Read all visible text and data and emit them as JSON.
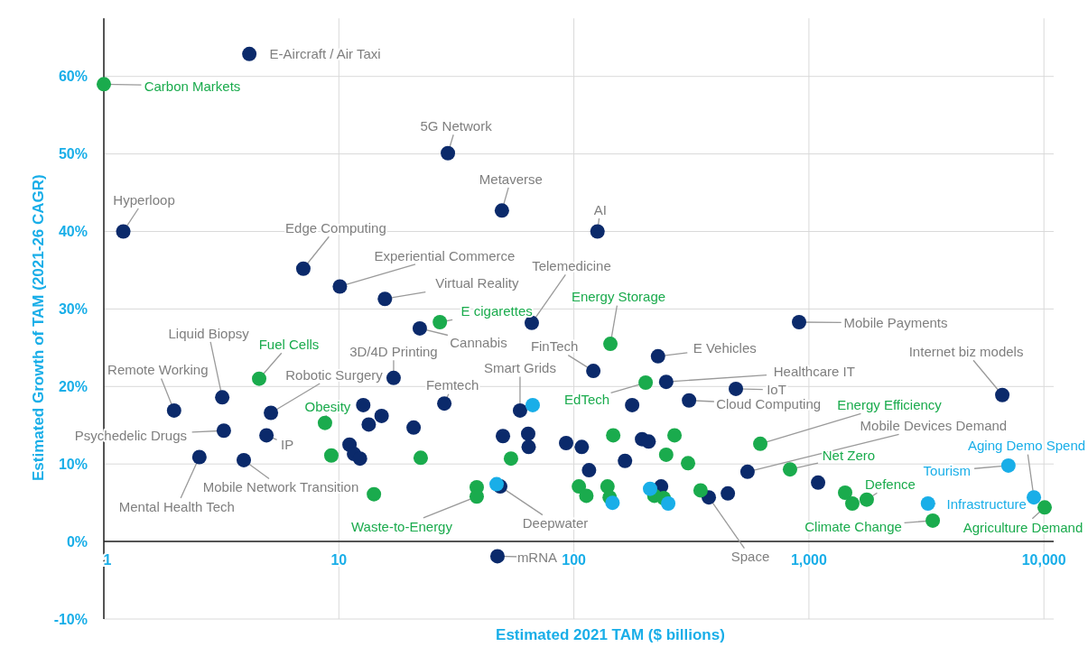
{
  "chart_data": {
    "type": "scatter",
    "xlabel": "Estimated 2021 TAM ($ billions)",
    "ylabel": "Estimated Growth of TAM (2021-26 CAGR)",
    "log": "x",
    "grid": true,
    "marker": "circle",
    "xlim": [
      1,
      11000
    ],
    "ylim": [
      -10,
      67.5
    ],
    "xticks": [
      1,
      10,
      100,
      {
        "value": 1000,
        "label": "1,000"
      },
      {
        "value": 10000,
        "label": "10,000"
      }
    ],
    "yticks": [
      {
        "value": -10,
        "label": "-10%"
      },
      {
        "value": 0,
        "label": "0%"
      },
      {
        "value": 10,
        "label": "10%"
      },
      {
        "value": 20,
        "label": "20%"
      },
      {
        "value": 30,
        "label": "30%"
      },
      {
        "value": 40,
        "label": "40%"
      },
      {
        "value": 50,
        "label": "50%"
      },
      {
        "value": 60,
        "label": "60%"
      }
    ],
    "series": [
      {
        "color": "#0b2a6b",
        "x": [
          4.16,
          29.1,
          49.4,
          126,
          1.21,
          7.06,
          10.1,
          15.7,
          66.2,
          22.1,
          908,
          121,
          228,
          247,
          17.1,
          6650,
          489,
          309,
          3.19,
          5.14,
          1.99,
          28.1,
          59.0,
          3.24,
          4.92,
          2.55,
          3.94,
          548,
          375,
          48.6,
          47.3,
          12.7,
          15.2,
          13.4,
          20.8,
          11.1,
          11.6,
          12.3,
          49.9,
          63.9,
          64.2,
          92.7,
          108,
          116,
          165,
          177,
          195,
          208,
          235,
          452,
          1094
        ],
        "values": [
          62.9,
          50.1,
          42.7,
          40.0,
          40.0,
          35.2,
          32.9,
          31.3,
          28.2,
          27.5,
          28.3,
          22.0,
          23.9,
          20.6,
          21.1,
          18.9,
          19.7,
          18.2,
          18.6,
          16.6,
          16.9,
          17.8,
          16.9,
          14.3,
          13.7,
          10.9,
          10.5,
          9.0,
          5.7,
          7.1,
          -1.9,
          17.6,
          16.2,
          15.1,
          14.7,
          12.5,
          11.3,
          10.7,
          13.6,
          13.9,
          12.2,
          12.7,
          12.2,
          9.2,
          10.4,
          17.6,
          13.2,
          12.9,
          7.1,
          6.2,
          7.6
        ]
      },
      {
        "color": "#1aab4d",
        "x": [
          1.0,
          26.9,
          143,
          4.58,
          202,
          8.73,
          621,
          831,
          38.6,
          38.6,
          1426,
          1530,
          1762,
          3365,
          10070,
          9.29,
          14.1,
          22.3,
          54.0,
          147,
          105,
          113,
          139,
          142,
          268,
          247,
          306,
          220,
          241,
          346
        ],
        "values": [
          59.0,
          28.3,
          25.5,
          21.0,
          20.5,
          15.3,
          12.6,
          9.3,
          7.0,
          5.8,
          6.3,
          4.9,
          5.4,
          2.7,
          4.4,
          11.1,
          6.1,
          10.8,
          10.7,
          13.7,
          7.1,
          5.9,
          7.1,
          5.7,
          13.7,
          11.2,
          10.1,
          5.9,
          5.6,
          6.6
        ]
      },
      {
        "color": "#19aee8",
        "x": [
          66.8,
          46.9,
          211,
          146,
          252,
          7060,
          9060,
          3210
        ],
        "values": [
          17.6,
          7.4,
          6.8,
          5.0,
          4.9,
          9.8,
          5.7,
          4.9
        ]
      }
    ],
    "annotations": [
      {
        "text": "E-Aircraft / Air Taxi",
        "x": 4.16,
        "y": 62.9
      },
      {
        "text": "Carbon Markets",
        "x": 1.0,
        "y": 59.0
      },
      {
        "text": "5G Network",
        "x": 29.1,
        "y": 50.1
      },
      {
        "text": "Metaverse",
        "x": 49.4,
        "y": 42.7
      },
      {
        "text": "AI",
        "x": 126,
        "y": 40.0
      },
      {
        "text": "Hyperloop",
        "x": 1.21,
        "y": 40.0
      },
      {
        "text": "Edge Computing",
        "x": 7.06,
        "y": 35.2
      },
      {
        "text": "Experiential Commerce",
        "x": 10.1,
        "y": 32.9
      },
      {
        "text": "Virtual Reality",
        "x": 15.7,
        "y": 31.3
      },
      {
        "text": "Telemedicine",
        "x": 66.2,
        "y": 28.2
      },
      {
        "text": "E cigarettes",
        "x": 26.9,
        "y": 28.3
      },
      {
        "text": "Energy Storage",
        "x": 143,
        "y": 25.5
      },
      {
        "text": "Cannabis",
        "x": 22.1,
        "y": 27.5
      },
      {
        "text": "Mobile Payments",
        "x": 908,
        "y": 28.3
      },
      {
        "text": "Liquid Biopsy",
        "x": 3.19,
        "y": 18.6
      },
      {
        "text": "Fuel Cells",
        "x": 4.58,
        "y": 21.0
      },
      {
        "text": "3D/4D Printing",
        "x": 17.1,
        "y": 21.1
      },
      {
        "text": "FinTech",
        "x": 121,
        "y": 22.0
      },
      {
        "text": "E Vehicles",
        "x": 228,
        "y": 23.9
      },
      {
        "text": "Internet biz models",
        "x": 6650,
        "y": 18.9
      },
      {
        "text": "Remote Working",
        "x": 1.99,
        "y": 16.9
      },
      {
        "text": "Robotic Surgery",
        "x": 5.14,
        "y": 16.6
      },
      {
        "text": "Smart Grids",
        "x": 59.0,
        "y": 16.9
      },
      {
        "text": "Healthcare IT",
        "x": 247,
        "y": 20.6
      },
      {
        "text": "Femtech",
        "x": 28.1,
        "y": 17.8
      },
      {
        "text": "IoT",
        "x": 489,
        "y": 19.7
      },
      {
        "text": "EdTech",
        "x": 202,
        "y": 20.5
      },
      {
        "text": "Cloud Computing",
        "x": 309,
        "y": 18.2
      },
      {
        "text": "Energy Efficiency",
        "x": 621,
        "y": 12.6
      },
      {
        "text": "Obesity",
        "x": 8.73,
        "y": 15.3
      },
      {
        "text": "Psychedelic Drugs",
        "x": 3.24,
        "y": 14.3
      },
      {
        "text": "IP",
        "x": 4.92,
        "y": 13.7
      },
      {
        "text": "Mobile Devices Demand",
        "x": 548,
        "y": 9.0
      },
      {
        "text": "Net Zero",
        "x": 831,
        "y": 9.3
      },
      {
        "text": "Aging Demo Spend",
        "x": 9060,
        "y": 5.7
      },
      {
        "text": "Tourism",
        "x": 7060,
        "y": 9.8
      },
      {
        "text": "Mental Health Tech",
        "x": 2.55,
        "y": 10.9
      },
      {
        "text": "Mobile Network Transition",
        "x": 3.94,
        "y": 10.5
      },
      {
        "text": "Defence",
        "x": 1762,
        "y": 5.4
      },
      {
        "text": "Infrastructure",
        "x": 3210,
        "y": 4.9
      },
      {
        "text": "Waste-to-Energy",
        "x": 38.6,
        "y": 5.8
      },
      {
        "text": "Deepwater",
        "x": 48.6,
        "y": 7.1
      },
      {
        "text": "Climate Change",
        "x": 3365,
        "y": 2.7
      },
      {
        "text": "Agriculture Demand",
        "x": 10070,
        "y": 4.4
      },
      {
        "text": "Space",
        "x": 375,
        "y": 5.7
      },
      {
        "text": "mRNA",
        "x": 47.3,
        "y": -1.9
      }
    ]
  }
}
